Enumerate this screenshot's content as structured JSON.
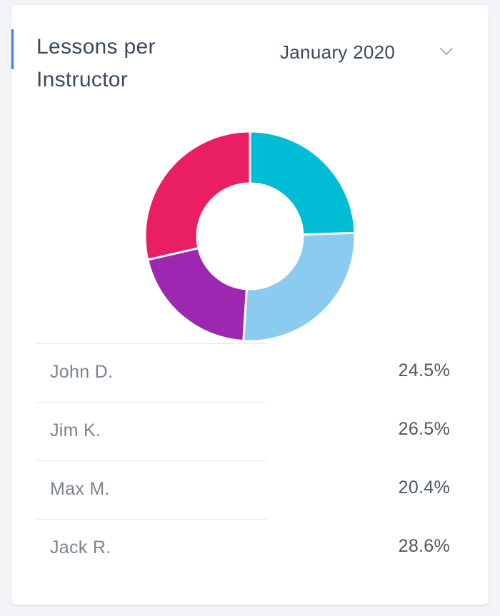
{
  "card": {
    "title": "Lessons per Instructor",
    "month_selector": {
      "value": "January 2020",
      "icon": "chevron-down-icon"
    }
  },
  "chart_data": {
    "type": "pie",
    "variant": "donut",
    "categories": [
      "John D.",
      "Jim K.",
      "Max M.",
      "Jack R."
    ],
    "values": [
      24.5,
      26.5,
      20.4,
      28.6
    ],
    "labels": [
      "24.5%",
      "26.5%",
      "20.4%",
      "28.6%"
    ],
    "colors": [
      "#00bcd4",
      "#8ccbf0",
      "#9c27b0",
      "#e91e63"
    ]
  },
  "legend": {
    "items": [
      {
        "name": "John D.",
        "value": "24.5%"
      },
      {
        "name": "Jim K.",
        "value": "26.5%"
      },
      {
        "name": "Max M.",
        "value": "20.4%"
      },
      {
        "name": "Jack R.",
        "value": "28.6%"
      }
    ]
  }
}
